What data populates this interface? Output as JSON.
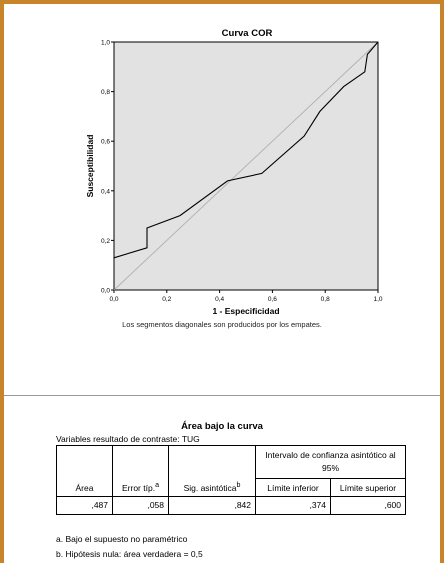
{
  "chart_data": {
    "type": "line",
    "title": "Curva COR",
    "xlabel": "1 - Especificidad",
    "ylabel": "Susceptibilidad",
    "xlim": [
      0,
      1
    ],
    "ylim": [
      0,
      1
    ],
    "xticks": [
      "0,0",
      "0,2",
      "0,4",
      "0,6",
      "0,8",
      "1,0"
    ],
    "yticks": [
      "0,0",
      "0,2",
      "0,4",
      "0,6",
      "0,8",
      "1,0"
    ],
    "grid": false,
    "background": "#e2e2e2",
    "series": [
      {
        "color": "#000000",
        "points": [
          [
            0,
            0.13
          ],
          [
            0.125,
            0.17
          ],
          [
            0.125,
            0.25
          ],
          [
            0.25,
            0.3
          ],
          [
            0.43,
            0.44
          ],
          [
            0.56,
            0.47
          ],
          [
            0.72,
            0.62
          ],
          [
            0.78,
            0.72
          ],
          [
            0.87,
            0.82
          ],
          [
            0.95,
            0.88
          ],
          [
            0.96,
            0.95
          ],
          [
            1,
            1
          ]
        ]
      },
      {
        "color": "#b0b0b0",
        "points": [
          [
            0,
            0
          ],
          [
            1,
            1
          ]
        ]
      }
    ]
  },
  "chart_footnote": "Los segmentos diagonales son producidos por los empates.",
  "table": {
    "title": "Área bajo la curva",
    "subtitle": "Variables resultado de contraste: TUG",
    "group_header": "Intervalo de confianza asintótico al 95%",
    "col_area": "Área",
    "col_error": "Error típ.",
    "col_error_sup": "a",
    "col_sig": "Sig. asintótica",
    "col_sig_sup": "b",
    "col_lower": "Límite inferior",
    "col_upper": "Límite superior",
    "row": {
      "area": ",487",
      "error": ",058",
      "sig": ",842",
      "lower": ",374",
      "upper": ",600"
    }
  },
  "footnotes": {
    "a": "a. Bajo el supuesto no paramétrico",
    "b": "b. Hipótesis nula: área verdadera = 0,5"
  },
  "colors": {
    "frame": "#c8842a"
  }
}
